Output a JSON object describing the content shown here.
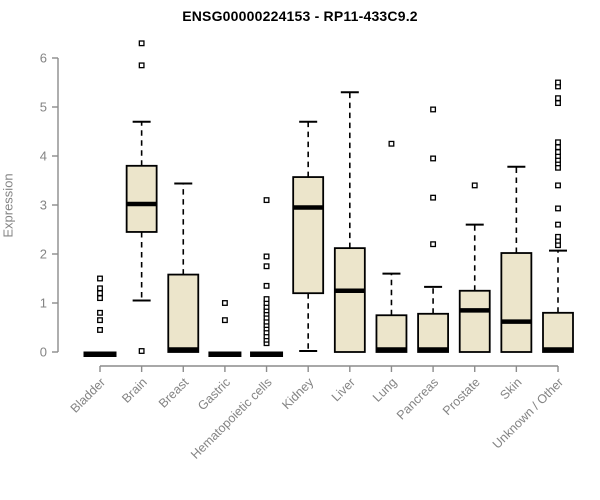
{
  "title": "ENSG00000224153 - RP11-433C9.2",
  "colors": {
    "background": "#ffffff",
    "box_fill": "#ece5cb",
    "box_border": "#000000",
    "median": "#000000",
    "whisker": "#000000",
    "outlier_stroke": "#000000",
    "outlier_fill": "#ffffff",
    "axis_line": "#8c8c8c",
    "axis_text": "#848484",
    "title_text": "#000000"
  },
  "y_axis": {
    "label": "Expression",
    "ticks": [
      0,
      1,
      2,
      3,
      4,
      5,
      6
    ]
  },
  "chart_data": {
    "type": "boxplot",
    "title": "ENSG00000224153 - RP11-433C9.2",
    "xlabel": "",
    "ylabel": "Expression",
    "ylim": [
      0,
      6.4
    ],
    "grid": false,
    "legend": "none",
    "categories": [
      "Bladder",
      "Brain",
      "Breast",
      "Gastric",
      "Hematopoietic cells",
      "Kidney",
      "Liver",
      "Lung",
      "Pancreas",
      "Prostate",
      "Skin",
      "Unknown / Other"
    ],
    "series": [
      {
        "name": "Bladder",
        "whisker_low": 0,
        "q1": 0,
        "median": 0,
        "q3": 0,
        "whisker_high": 0,
        "outliers": [
          0.45,
          0.65,
          0.8,
          1.1,
          1.2,
          1.3,
          1.5
        ]
      },
      {
        "name": "Brain",
        "whisker_low": 1.05,
        "q1": 2.45,
        "median": 3.02,
        "q3": 3.8,
        "whisker_high": 4.7,
        "outliers": [
          0.02,
          5.85,
          6.3
        ]
      },
      {
        "name": "Breast",
        "whisker_low": 0,
        "q1": 0,
        "median": 0.05,
        "q3": 1.58,
        "whisker_high": 3.44,
        "outliers": []
      },
      {
        "name": "Gastric",
        "whisker_low": 0,
        "q1": 0,
        "median": 0,
        "q3": 0,
        "whisker_high": 0,
        "outliers": [
          0.65,
          1.0
        ]
      },
      {
        "name": "Hematopoietic cells",
        "whisker_low": 0,
        "q1": 0,
        "median": 0,
        "q3": 0,
        "whisker_high": 0,
        "outliers": [
          0.18,
          0.25,
          0.32,
          0.4,
          0.48,
          0.55,
          0.62,
          0.7,
          0.78,
          0.85,
          0.92,
          1.0,
          1.08,
          1.35,
          1.75,
          1.95,
          3.1
        ]
      },
      {
        "name": "Kidney",
        "whisker_low": 0.02,
        "q1": 1.2,
        "median": 2.95,
        "q3": 3.57,
        "whisker_high": 4.7,
        "outliers": []
      },
      {
        "name": "Liver",
        "whisker_low": 0,
        "q1": 0,
        "median": 1.25,
        "q3": 2.12,
        "whisker_high": 5.3,
        "outliers": []
      },
      {
        "name": "Lung",
        "whisker_low": 0,
        "q1": 0,
        "median": 0.05,
        "q3": 0.75,
        "whisker_high": 1.6,
        "outliers": [
          4.25
        ]
      },
      {
        "name": "Pancreas",
        "whisker_low": 0,
        "q1": 0,
        "median": 0.05,
        "q3": 0.78,
        "whisker_high": 1.33,
        "outliers": [
          2.2,
          3.15,
          3.95,
          4.95
        ]
      },
      {
        "name": "Prostate",
        "whisker_low": 0,
        "q1": 0,
        "median": 0.85,
        "q3": 1.25,
        "whisker_high": 2.6,
        "outliers": [
          3.4
        ]
      },
      {
        "name": "Skin",
        "whisker_low": 0,
        "q1": 0,
        "median": 0.62,
        "q3": 2.02,
        "whisker_high": 3.78,
        "outliers": []
      },
      {
        "name": "Unknown / Other",
        "whisker_low": 0,
        "q1": 0,
        "median": 0.05,
        "q3": 0.8,
        "whisker_high": 2.07,
        "outliers": [
          2.18,
          2.27,
          2.35,
          2.6,
          2.93,
          3.4,
          3.76,
          3.85,
          3.92,
          4.0,
          4.08,
          4.18,
          4.28,
          5.08,
          5.18,
          5.42,
          5.5
        ]
      }
    ]
  }
}
